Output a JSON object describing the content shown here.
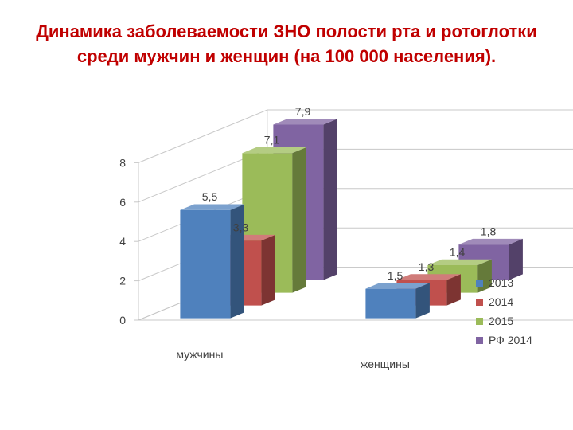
{
  "title": "Динамика заболеваемости ЗНО полости рта и ротоглотки среди мужчин и женщин (на 100 000 населения).",
  "chart_data": {
    "type": "bar",
    "subtype": "3d-column",
    "title": "Динамика заболеваемости ЗНО полости рта и ротоглотки среди мужчин и женщин (на 100 000 населения).",
    "categories": [
      "мужчины",
      "женщины"
    ],
    "series": [
      {
        "name": "2013",
        "color": "#4f81bd",
        "values": [
          5.5,
          1.5
        ]
      },
      {
        "name": "2014",
        "color": "#c0504d",
        "values": [
          3.3,
          1.3
        ]
      },
      {
        "name": "2015",
        "color": "#9bbb59",
        "values": [
          7.1,
          1.4
        ]
      },
      {
        "name": "РФ 2014",
        "color": "#8064a2",
        "values": [
          7.9,
          1.8
        ]
      }
    ],
    "depth_labels": [
      "2013",
      "2014",
      "2015",
      "РФ 2014"
    ],
    "y_ticks": [
      "0",
      "2",
      "4",
      "6",
      "8"
    ],
    "ylim": [
      0,
      8
    ],
    "grid": true,
    "legend": "right",
    "data_labels": {
      "мужчины": [
        "5,5",
        "3,3",
        "7,1",
        "7,9"
      ],
      "женщины": [
        "1,5",
        "1,3",
        "1,4",
        "1,8"
      ]
    }
  }
}
